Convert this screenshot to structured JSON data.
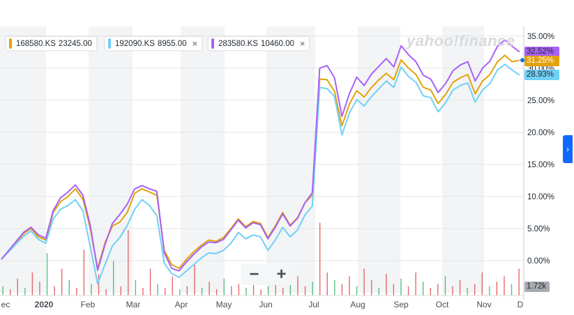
{
  "watermark": "yahoo!finance",
  "legend": [
    {
      "symbol": "168580.KS",
      "price": "23245.00",
      "color": "#e1a20c",
      "closable": false
    },
    {
      "symbol": "192090.KS",
      "price": "8955.00",
      "color": "#70d0f5",
      "closable": true
    },
    {
      "symbol": "283580.KS",
      "price": "10460.00",
      "color": "#a861f5",
      "closable": true
    }
  ],
  "close_icon": "×",
  "zoom": {
    "minus": "−",
    "plus": "+"
  },
  "side_tab_icon": "›",
  "volume_label": "1.72k",
  "last_values": [
    {
      "text": "32.52%",
      "color": "#a861f5"
    },
    {
      "text": "31.25%",
      "color": "#e1a20c"
    },
    {
      "text": "28.93%",
      "color": "#70d0f5"
    }
  ],
  "chart_data": {
    "type": "line",
    "title": "",
    "xlabel": "",
    "ylabel": "",
    "y_unit": "%",
    "ylim": [
      -5,
      36.5
    ],
    "y_ticks": [
      "35.00%",
      "30.00%",
      "25.00%",
      "20.00%",
      "15.00%",
      "10.00%",
      "5.00%",
      "0.00%"
    ],
    "y_tick_values": [
      35,
      30,
      25,
      20,
      15,
      10,
      5,
      0
    ],
    "x_ticks": [
      "ec",
      "2020",
      "Feb",
      "Mar",
      "Apr",
      "May",
      "Jun",
      "Jul",
      "Aug",
      "Sep",
      "Oct",
      "Nov",
      "D"
    ],
    "grid": true,
    "legend_position": "top-left",
    "series": [
      {
        "name": "168580.KS",
        "color": "#e1a20c",
        "values": [
          0.2,
          1.5,
          2.8,
          4.2,
          5.0,
          3.7,
          3.2,
          7.5,
          9.2,
          10.0,
          11.2,
          9.6,
          5.0,
          -1.2,
          2.8,
          5.4,
          6.0,
          7.5,
          10.5,
          11.2,
          10.7,
          10.2,
          1.6,
          -0.6,
          -1.2,
          0.2,
          1.4,
          2.4,
          3.2,
          3.0,
          3.6,
          5.0,
          6.5,
          5.3,
          6.1,
          5.8,
          3.6,
          5.4,
          7.5,
          5.5,
          6.7,
          9.0,
          10.2,
          28.3,
          28.2,
          26.4,
          21.0,
          24.4,
          26.5,
          25.5,
          27.0,
          28.2,
          29.2,
          28.2,
          31.3,
          30.0,
          29.0,
          27.0,
          26.6,
          24.5,
          25.9,
          27.8,
          28.5,
          29.0,
          26.0,
          28.0,
          29.0,
          31.0,
          32.0,
          31.0,
          31.25
        ]
      },
      {
        "name": "192090.KS",
        "color": "#70d0f5",
        "values": [
          0.2,
          1.4,
          2.6,
          3.8,
          4.6,
          3.3,
          2.7,
          6.5,
          8.0,
          8.6,
          9.5,
          7.8,
          2.2,
          -3.6,
          -0.6,
          2.3,
          3.6,
          5.5,
          8.0,
          9.5,
          8.6,
          7.0,
          -0.4,
          -2.0,
          -2.6,
          -1.6,
          -0.6,
          0.4,
          1.2,
          1.1,
          1.6,
          2.7,
          4.4,
          3.4,
          4.0,
          3.7,
          1.6,
          3.2,
          5.2,
          3.7,
          4.8,
          7.1,
          8.5,
          27.0,
          26.8,
          25.6,
          19.6,
          23.0,
          25.1,
          24.1,
          25.6,
          26.8,
          28.0,
          27.0,
          30.2,
          28.7,
          27.8,
          25.7,
          25.4,
          23.2,
          24.6,
          26.6,
          27.3,
          27.7,
          24.7,
          26.6,
          27.6,
          29.7,
          30.6,
          29.7,
          28.93
        ]
      },
      {
        "name": "283580.KS",
        "color": "#a861f5",
        "values": [
          0.2,
          1.6,
          3.0,
          4.4,
          5.2,
          4.0,
          3.5,
          7.8,
          9.8,
          10.7,
          11.8,
          10.2,
          5.5,
          -1.5,
          2.5,
          5.8,
          7.2,
          8.8,
          11.2,
          11.7,
          11.2,
          10.8,
          1.2,
          -1.2,
          -1.6,
          -0.2,
          1.0,
          2.1,
          2.9,
          2.8,
          3.3,
          4.8,
          6.3,
          5.1,
          5.9,
          5.6,
          3.4,
          5.2,
          7.3,
          5.4,
          6.6,
          9.0,
          10.6,
          30.0,
          30.4,
          28.5,
          22.5,
          26.0,
          28.6,
          27.3,
          29.1,
          30.3,
          31.5,
          30.2,
          33.5,
          32.1,
          31.0,
          28.9,
          28.3,
          26.2,
          27.6,
          29.6,
          30.5,
          31.0,
          28.0,
          30.0,
          31.1,
          33.4,
          34.4,
          33.4,
          32.52
        ]
      }
    ],
    "volume": [
      0.12,
      0.08,
      0.22,
      0.1,
      0.3,
      0.18,
      0.55,
      0.12,
      0.35,
      0.2,
      0.1,
      0.6,
      0.15,
      0.28,
      0.08,
      0.45,
      0.12,
      0.85,
      0.2,
      0.1,
      0.35,
      0.15,
      0.1,
      0.25,
      0.08,
      0.12,
      0.4,
      0.1,
      0.18,
      0.08,
      0.22,
      0.12,
      0.15,
      0.1,
      0.3,
      0.08,
      0.12,
      0.2,
      0.1,
      0.15,
      0.25,
      0.12,
      0.18,
      0.95,
      0.3,
      0.2,
      0.15,
      0.25,
      0.12,
      0.35,
      0.2,
      0.1,
      0.28,
      0.15,
      0.22,
      0.12,
      0.3,
      0.18,
      0.1,
      0.15,
      0.25,
      0.12,
      0.2,
      0.1,
      0.15,
      0.3,
      0.12,
      0.18,
      0.25,
      0.15,
      0.35
    ],
    "volume_colors": [
      "#e04f4f",
      "#3cb371"
    ]
  }
}
